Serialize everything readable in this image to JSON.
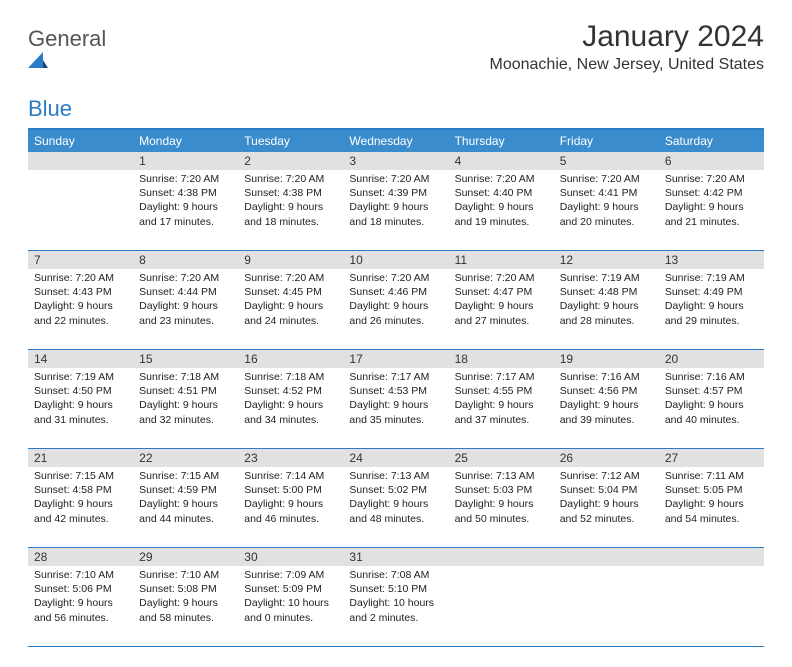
{
  "brand": {
    "part1": "General",
    "part2": "Blue"
  },
  "title": "January 2024",
  "location": "Moonachie, New Jersey, United States",
  "colors": {
    "header_bg": "#3b8ccc",
    "border": "#2a7cc7",
    "daybar": "#e1e1e1",
    "text": "#222222"
  },
  "days_of_week": [
    "Sunday",
    "Monday",
    "Tuesday",
    "Wednesday",
    "Thursday",
    "Friday",
    "Saturday"
  ],
  "weeks": [
    {
      "nums": [
        "",
        "1",
        "2",
        "3",
        "4",
        "5",
        "6"
      ],
      "cells": [
        null,
        {
          "sr": "Sunrise: 7:20 AM",
          "ss": "Sunset: 4:38 PM",
          "d1": "Daylight: 9 hours",
          "d2": "and 17 minutes."
        },
        {
          "sr": "Sunrise: 7:20 AM",
          "ss": "Sunset: 4:38 PM",
          "d1": "Daylight: 9 hours",
          "d2": "and 18 minutes."
        },
        {
          "sr": "Sunrise: 7:20 AM",
          "ss": "Sunset: 4:39 PM",
          "d1": "Daylight: 9 hours",
          "d2": "and 18 minutes."
        },
        {
          "sr": "Sunrise: 7:20 AM",
          "ss": "Sunset: 4:40 PM",
          "d1": "Daylight: 9 hours",
          "d2": "and 19 minutes."
        },
        {
          "sr": "Sunrise: 7:20 AM",
          "ss": "Sunset: 4:41 PM",
          "d1": "Daylight: 9 hours",
          "d2": "and 20 minutes."
        },
        {
          "sr": "Sunrise: 7:20 AM",
          "ss": "Sunset: 4:42 PM",
          "d1": "Daylight: 9 hours",
          "d2": "and 21 minutes."
        }
      ]
    },
    {
      "nums": [
        "7",
        "8",
        "9",
        "10",
        "11",
        "12",
        "13"
      ],
      "cells": [
        {
          "sr": "Sunrise: 7:20 AM",
          "ss": "Sunset: 4:43 PM",
          "d1": "Daylight: 9 hours",
          "d2": "and 22 minutes."
        },
        {
          "sr": "Sunrise: 7:20 AM",
          "ss": "Sunset: 4:44 PM",
          "d1": "Daylight: 9 hours",
          "d2": "and 23 minutes."
        },
        {
          "sr": "Sunrise: 7:20 AM",
          "ss": "Sunset: 4:45 PM",
          "d1": "Daylight: 9 hours",
          "d2": "and 24 minutes."
        },
        {
          "sr": "Sunrise: 7:20 AM",
          "ss": "Sunset: 4:46 PM",
          "d1": "Daylight: 9 hours",
          "d2": "and 26 minutes."
        },
        {
          "sr": "Sunrise: 7:20 AM",
          "ss": "Sunset: 4:47 PM",
          "d1": "Daylight: 9 hours",
          "d2": "and 27 minutes."
        },
        {
          "sr": "Sunrise: 7:19 AM",
          "ss": "Sunset: 4:48 PM",
          "d1": "Daylight: 9 hours",
          "d2": "and 28 minutes."
        },
        {
          "sr": "Sunrise: 7:19 AM",
          "ss": "Sunset: 4:49 PM",
          "d1": "Daylight: 9 hours",
          "d2": "and 29 minutes."
        }
      ]
    },
    {
      "nums": [
        "14",
        "15",
        "16",
        "17",
        "18",
        "19",
        "20"
      ],
      "cells": [
        {
          "sr": "Sunrise: 7:19 AM",
          "ss": "Sunset: 4:50 PM",
          "d1": "Daylight: 9 hours",
          "d2": "and 31 minutes."
        },
        {
          "sr": "Sunrise: 7:18 AM",
          "ss": "Sunset: 4:51 PM",
          "d1": "Daylight: 9 hours",
          "d2": "and 32 minutes."
        },
        {
          "sr": "Sunrise: 7:18 AM",
          "ss": "Sunset: 4:52 PM",
          "d1": "Daylight: 9 hours",
          "d2": "and 34 minutes."
        },
        {
          "sr": "Sunrise: 7:17 AM",
          "ss": "Sunset: 4:53 PM",
          "d1": "Daylight: 9 hours",
          "d2": "and 35 minutes."
        },
        {
          "sr": "Sunrise: 7:17 AM",
          "ss": "Sunset: 4:55 PM",
          "d1": "Daylight: 9 hours",
          "d2": "and 37 minutes."
        },
        {
          "sr": "Sunrise: 7:16 AM",
          "ss": "Sunset: 4:56 PM",
          "d1": "Daylight: 9 hours",
          "d2": "and 39 minutes."
        },
        {
          "sr": "Sunrise: 7:16 AM",
          "ss": "Sunset: 4:57 PM",
          "d1": "Daylight: 9 hours",
          "d2": "and 40 minutes."
        }
      ]
    },
    {
      "nums": [
        "21",
        "22",
        "23",
        "24",
        "25",
        "26",
        "27"
      ],
      "cells": [
        {
          "sr": "Sunrise: 7:15 AM",
          "ss": "Sunset: 4:58 PM",
          "d1": "Daylight: 9 hours",
          "d2": "and 42 minutes."
        },
        {
          "sr": "Sunrise: 7:15 AM",
          "ss": "Sunset: 4:59 PM",
          "d1": "Daylight: 9 hours",
          "d2": "and 44 minutes."
        },
        {
          "sr": "Sunrise: 7:14 AM",
          "ss": "Sunset: 5:00 PM",
          "d1": "Daylight: 9 hours",
          "d2": "and 46 minutes."
        },
        {
          "sr": "Sunrise: 7:13 AM",
          "ss": "Sunset: 5:02 PM",
          "d1": "Daylight: 9 hours",
          "d2": "and 48 minutes."
        },
        {
          "sr": "Sunrise: 7:13 AM",
          "ss": "Sunset: 5:03 PM",
          "d1": "Daylight: 9 hours",
          "d2": "and 50 minutes."
        },
        {
          "sr": "Sunrise: 7:12 AM",
          "ss": "Sunset: 5:04 PM",
          "d1": "Daylight: 9 hours",
          "d2": "and 52 minutes."
        },
        {
          "sr": "Sunrise: 7:11 AM",
          "ss": "Sunset: 5:05 PM",
          "d1": "Daylight: 9 hours",
          "d2": "and 54 minutes."
        }
      ]
    },
    {
      "nums": [
        "28",
        "29",
        "30",
        "31",
        "",
        "",
        ""
      ],
      "cells": [
        {
          "sr": "Sunrise: 7:10 AM",
          "ss": "Sunset: 5:06 PM",
          "d1": "Daylight: 9 hours",
          "d2": "and 56 minutes."
        },
        {
          "sr": "Sunrise: 7:10 AM",
          "ss": "Sunset: 5:08 PM",
          "d1": "Daylight: 9 hours",
          "d2": "and 58 minutes."
        },
        {
          "sr": "Sunrise: 7:09 AM",
          "ss": "Sunset: 5:09 PM",
          "d1": "Daylight: 10 hours",
          "d2": "and 0 minutes."
        },
        {
          "sr": "Sunrise: 7:08 AM",
          "ss": "Sunset: 5:10 PM",
          "d1": "Daylight: 10 hours",
          "d2": "and 2 minutes."
        },
        null,
        null,
        null
      ]
    }
  ]
}
